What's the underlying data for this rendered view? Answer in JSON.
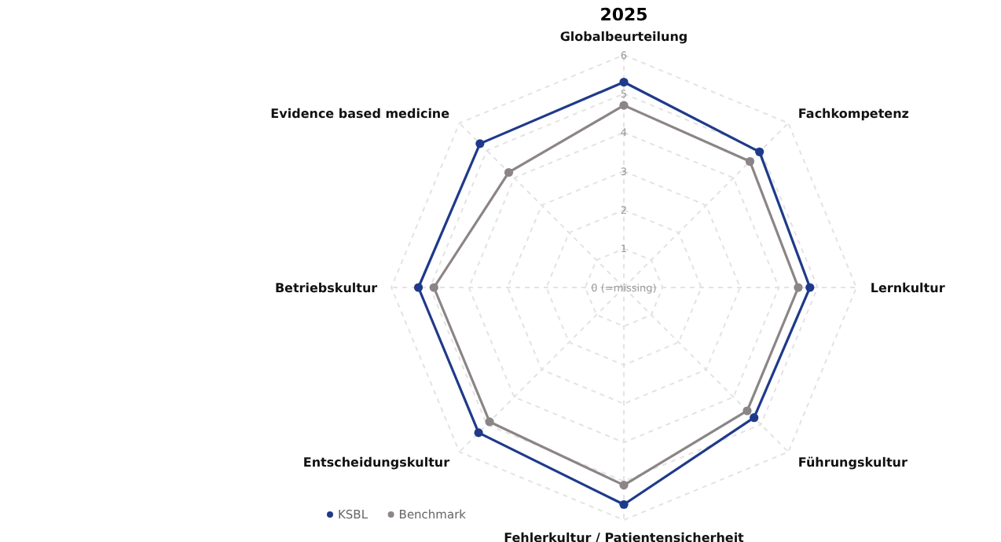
{
  "chart_data": {
    "type": "radar",
    "title": "2025",
    "categories": [
      "Globalbeurteilung",
      "Fachkompetenz",
      "Lernkultur",
      "Führungskultur",
      "Fehlerkultur / Patientensicherheit",
      "Entscheidungskultur",
      "Betriebskultur",
      "Evidence based medicine"
    ],
    "series": [
      {
        "name": "KSBL",
        "color": "#1f3a8a",
        "values": [
          5.3,
          4.95,
          4.8,
          4.75,
          5.6,
          5.3,
          5.3,
          5.25
        ]
      },
      {
        "name": "Benchmark",
        "color": "#8c8585",
        "values": [
          4.7,
          4.6,
          4.5,
          4.5,
          5.1,
          4.9,
          4.9,
          4.2
        ]
      }
    ],
    "ylim": [
      0,
      6
    ],
    "yticks": [
      {
        "value": 0,
        "label": "0 (=missing)"
      },
      1,
      2,
      3,
      4,
      5,
      6
    ],
    "grid": true,
    "legend": "bottom left",
    "marker": "circle",
    "line_style": "solid"
  }
}
